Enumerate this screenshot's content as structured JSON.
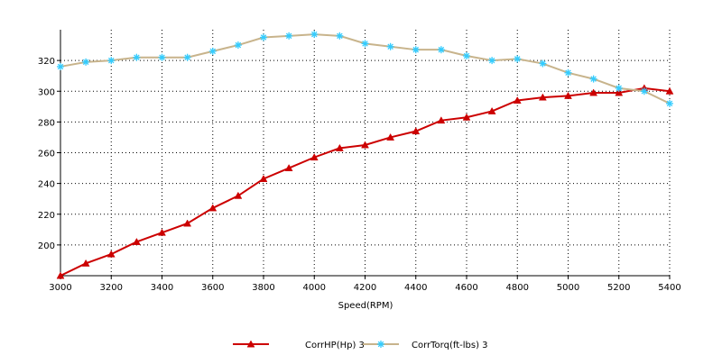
{
  "chart_data": {
    "type": "line",
    "title": "",
    "xlabel": "Speed(RPM)",
    "ylabel": "",
    "xlim": [
      3000,
      5400
    ],
    "ylim": [
      180,
      340
    ],
    "x_ticks": [
      3000,
      3200,
      3400,
      3600,
      3800,
      4000,
      4200,
      4400,
      4600,
      4800,
      5000,
      5200,
      5400
    ],
    "y_ticks": [
      200,
      220,
      240,
      260,
      280,
      300,
      320
    ],
    "grid": true,
    "legend": "bottom",
    "x": [
      3000,
      3100,
      3200,
      3300,
      3400,
      3500,
      3600,
      3700,
      3800,
      3900,
      4000,
      4100,
      4200,
      4300,
      4400,
      4500,
      4600,
      4700,
      4800,
      4900,
      5000,
      5100,
      5200,
      5300,
      5400
    ],
    "series": [
      {
        "name": "CorrHP(Hp)  3",
        "color": "#cc0000",
        "marker": "triangle",
        "values": [
          180,
          188,
          194,
          202,
          208,
          214,
          224,
          232,
          243,
          250,
          257,
          263,
          265,
          270,
          274,
          281,
          283,
          287,
          294,
          296,
          297,
          299,
          299,
          302,
          300
        ]
      },
      {
        "name": "CorrTorq(ft-lbs)  3",
        "color": "#c8b48c",
        "marker": "star",
        "marker_color": "#33ccff",
        "values": [
          316,
          319,
          320,
          322,
          322,
          322,
          326,
          330,
          335,
          336,
          337,
          336,
          331,
          329,
          327,
          327,
          323,
          320,
          321,
          318,
          312,
          308,
          302,
          300,
          292
        ]
      }
    ]
  }
}
